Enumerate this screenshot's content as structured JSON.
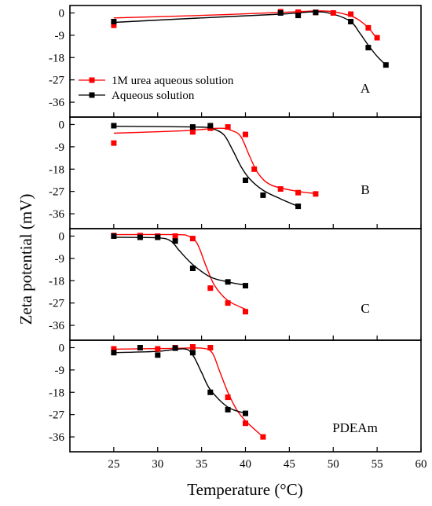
{
  "colors": {
    "urea": "#ff0000",
    "aqueous": "#000000"
  },
  "xlabel": "Temperature (°C)",
  "ylabel": "Zeta potential (mV)",
  "legend": {
    "items": [
      {
        "label": "1M urea aqueous solution",
        "series": "urea"
      },
      {
        "label": "Aqueous solution",
        "series": "aqueous"
      }
    ]
  },
  "chart_data": [
    {
      "type": "line",
      "panel": "A",
      "xlim": [
        20,
        60
      ],
      "ylim": [
        -42,
        3
      ],
      "yticks": [
        0,
        -9,
        -18,
        -27,
        -36
      ],
      "xticks": [
        25,
        30,
        35,
        40,
        45,
        50,
        55,
        60
      ],
      "series": [
        {
          "name": "1M urea aqueous solution",
          "key": "urea",
          "x": [
            25,
            44,
            46,
            48,
            50,
            52,
            54,
            55
          ],
          "y": [
            -5,
            0.5,
            0.3,
            0.2,
            0,
            -0.5,
            -6,
            -10
          ],
          "curve": [
            [
              25,
              -2
            ],
            [
              35,
              -1
            ],
            [
              44,
              0.2
            ],
            [
              48,
              0.8
            ],
            [
              50,
              0.5
            ],
            [
              52,
              -1.2
            ],
            [
              53,
              -3
            ],
            [
              54,
              -6
            ],
            [
              55,
              -10.5
            ]
          ]
        },
        {
          "name": "Aqueous solution",
          "key": "aqueous",
          "x": [
            25,
            44,
            46,
            48,
            52,
            54,
            56
          ],
          "y": [
            -3.5,
            0,
            -1,
            0.2,
            -3.5,
            -14,
            -21
          ],
          "curve": [
            [
              25,
              -3.8
            ],
            [
              35,
              -2
            ],
            [
              44,
              -0.5
            ],
            [
              48,
              0.5
            ],
            [
              50,
              -0.5
            ],
            [
              52,
              -3.5
            ],
            [
              53,
              -8
            ],
            [
              54,
              -13
            ],
            [
              55,
              -17.5
            ],
            [
              56,
              -21
            ]
          ]
        }
      ]
    },
    {
      "type": "line",
      "panel": "B",
      "xlim": [
        20,
        60
      ],
      "ylim": [
        -42,
        3
      ],
      "yticks": [
        0,
        -9,
        -18,
        -27,
        -36
      ],
      "xticks": [
        25,
        30,
        35,
        40,
        45,
        50,
        55,
        60
      ],
      "series": [
        {
          "name": "1M urea aqueous solution",
          "key": "urea",
          "x": [
            25,
            34,
            36,
            38,
            40,
            41,
            44,
            46,
            48
          ],
          "y": [
            -7.5,
            -3,
            -1.5,
            -1,
            -4,
            -18,
            -26,
            -27.5,
            -28
          ],
          "curve": [
            [
              25,
              -3.5
            ],
            [
              33,
              -2.5
            ],
            [
              37,
              -1.5
            ],
            [
              38.5,
              -2.5
            ],
            [
              39.5,
              -5
            ],
            [
              40.5,
              -13
            ],
            [
              41.5,
              -20
            ],
            [
              43,
              -24.5
            ],
            [
              46,
              -27
            ],
            [
              48,
              -27.8
            ]
          ]
        },
        {
          "name": "Aqueous solution",
          "key": "aqueous",
          "x": [
            25,
            34,
            36,
            40,
            42,
            46
          ],
          "y": [
            -0.5,
            -1,
            -0.5,
            -22.5,
            -28.5,
            -33
          ],
          "curve": [
            [
              25,
              -0.7
            ],
            [
              34,
              -1
            ],
            [
              36,
              -1.5
            ],
            [
              37.5,
              -4
            ],
            [
              38.5,
              -10
            ],
            [
              39.5,
              -17
            ],
            [
              40.5,
              -22
            ],
            [
              42,
              -26.5
            ],
            [
              44,
              -30
            ],
            [
              46,
              -33
            ]
          ]
        }
      ]
    },
    {
      "type": "line",
      "panel": "C",
      "xlim": [
        20,
        60
      ],
      "ylim": [
        -42,
        3
      ],
      "yticks": [
        0,
        -9,
        -18,
        -27,
        -36
      ],
      "xticks": [
        25,
        30,
        35,
        40,
        45,
        50,
        55,
        60
      ],
      "series": [
        {
          "name": "1M urea aqueous solution",
          "key": "urea",
          "x": [
            25,
            28,
            30,
            32,
            34,
            36,
            38,
            40
          ],
          "y": [
            0.2,
            0.2,
            0,
            0,
            -1,
            -21,
            -27,
            -30.5
          ],
          "curve": [
            [
              25,
              0.6
            ],
            [
              32,
              0.6
            ],
            [
              33.5,
              0
            ],
            [
              34.5,
              -3
            ],
            [
              35.5,
              -12
            ],
            [
              36.5,
              -20
            ],
            [
              38,
              -26
            ],
            [
              40,
              -29.5
            ]
          ]
        },
        {
          "name": "Aqueous solution",
          "key": "aqueous",
          "x": [
            25,
            28,
            30,
            32,
            34,
            38,
            40
          ],
          "y": [
            0,
            -0.5,
            -0.5,
            -2,
            -13,
            -18.5,
            -20
          ],
          "curve": [
            [
              25,
              -0.5
            ],
            [
              30,
              -0.7
            ],
            [
              31.5,
              -2
            ],
            [
              32.5,
              -6
            ],
            [
              34,
              -11.5
            ],
            [
              36,
              -16.5
            ],
            [
              38,
              -18.5
            ],
            [
              40,
              -19.8
            ]
          ]
        }
      ]
    },
    {
      "type": "line",
      "panel": "PDEAm",
      "xlim": [
        20,
        60
      ],
      "ylim": [
        -42,
        3
      ],
      "yticks": [
        0,
        -9,
        -18,
        -27,
        -36
      ],
      "xticks": [
        25,
        30,
        35,
        40,
        45,
        50,
        55,
        60
      ],
      "series": [
        {
          "name": "1M urea aqueous solution",
          "key": "urea",
          "x": [
            25,
            30,
            32,
            34,
            36,
            38,
            40,
            42
          ],
          "y": [
            -0.5,
            -0.5,
            0,
            0.3,
            0,
            -20,
            -30.5,
            -36
          ],
          "curve": [
            [
              25,
              -0.6
            ],
            [
              32,
              -0.3
            ],
            [
              35,
              -0.2
            ],
            [
              36.2,
              -2
            ],
            [
              37,
              -9
            ],
            [
              38,
              -18
            ],
            [
              39,
              -25
            ],
            [
              40,
              -29.5
            ],
            [
              42,
              -36
            ]
          ]
        },
        {
          "name": "Aqueous solution",
          "key": "aqueous",
          "x": [
            25,
            28,
            30,
            32,
            34,
            36,
            38,
            40
          ],
          "y": [
            -2,
            0,
            -3,
            -0.2,
            -2,
            -18,
            -25,
            -26.5
          ],
          "curve": [
            [
              25,
              -2
            ],
            [
              30,
              -1.5
            ],
            [
              33,
              -0.5
            ],
            [
              34,
              -3
            ],
            [
              35,
              -10
            ],
            [
              36,
              -17
            ],
            [
              38,
              -24
            ],
            [
              40,
              -26.5
            ]
          ]
        }
      ]
    }
  ]
}
